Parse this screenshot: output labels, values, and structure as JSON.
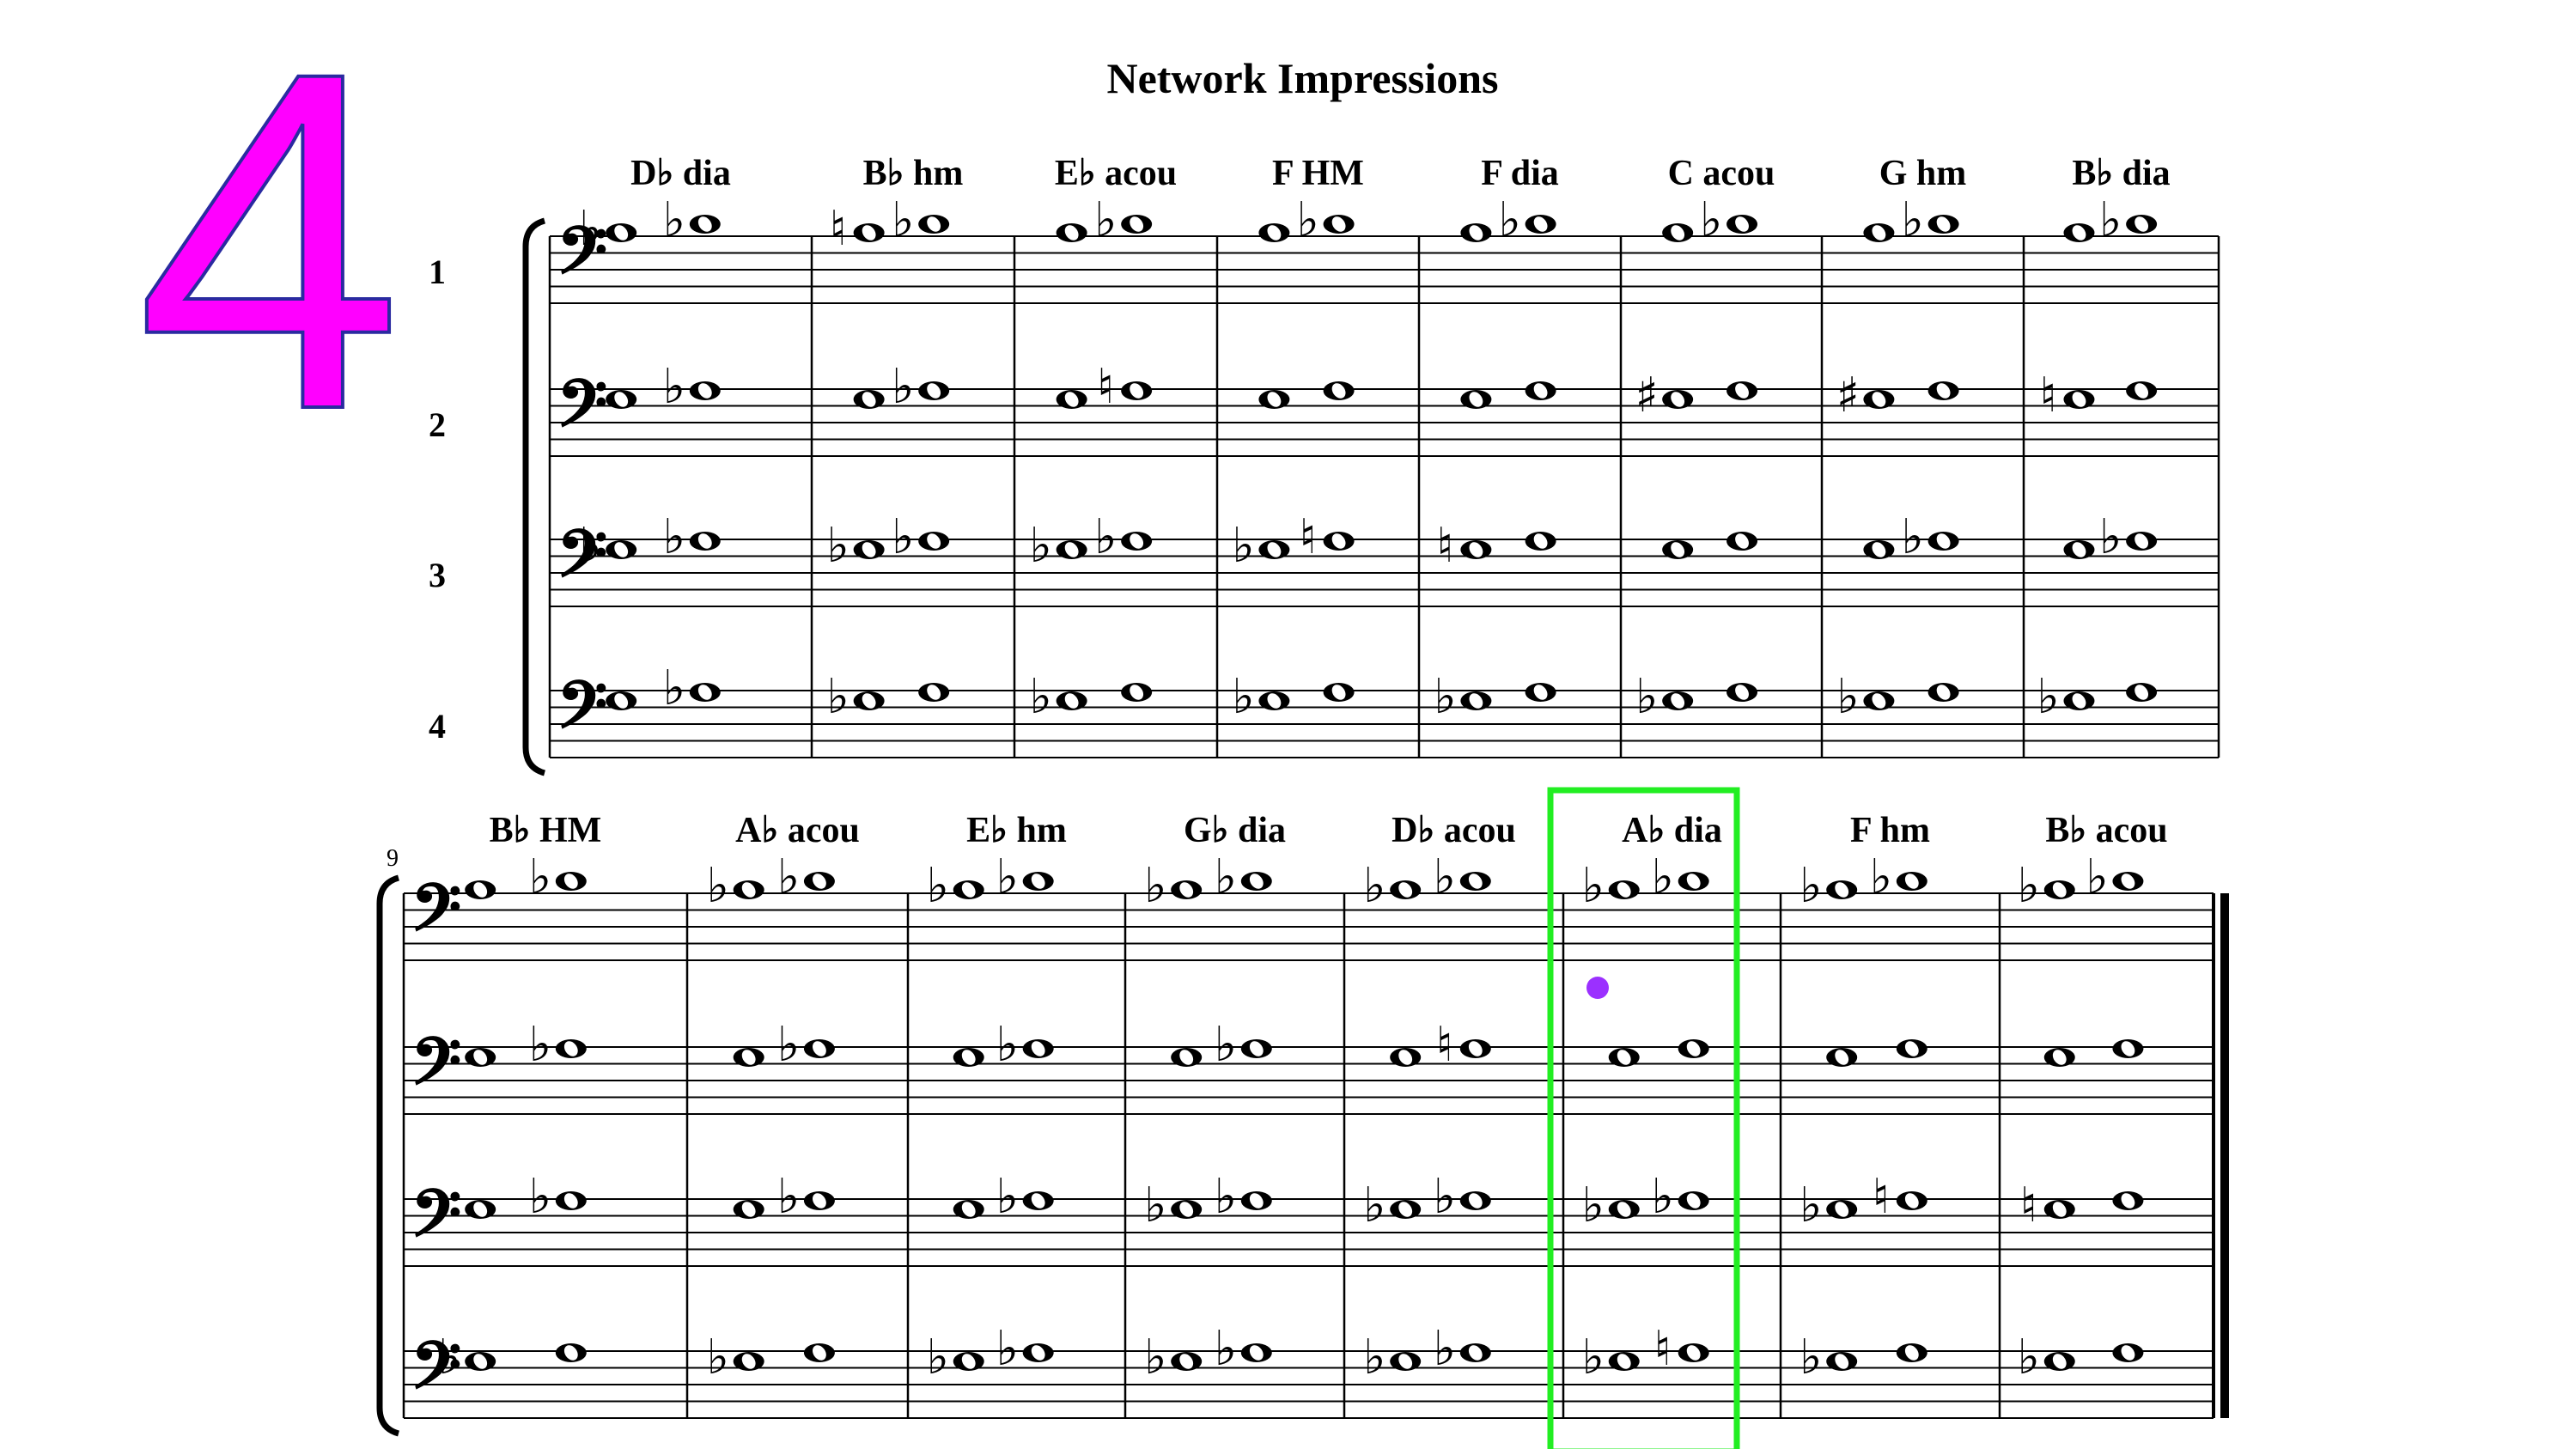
{
  "slide_number": "4",
  "title": "Network Impressions",
  "staff_numbers": [
    "1",
    "2",
    "3",
    "4"
  ],
  "system2_measure_number": "9",
  "colors": {
    "slide_number": "#ff00ff",
    "highlight_box": "#22ee22",
    "marker_dot": "#9b30ff"
  },
  "highlighted_chord": "A♭ dia",
  "systems": [
    {
      "chords": [
        "D♭ dia",
        "B♭ hm",
        "E♭ acou",
        "F HM",
        "F dia",
        "C acou",
        "G hm",
        "B♭ dia"
      ],
      "measures": [
        [
          [
            "flat",
            "flat"
          ],
          [
            "",
            "flat"
          ],
          [
            "flat",
            "flat"
          ],
          [
            "",
            "flat"
          ]
        ],
        [
          [
            "natural",
            "flat"
          ],
          [
            "",
            "flat"
          ],
          [
            "flat",
            "flat"
          ],
          [
            "flat",
            ""
          ]
        ],
        [
          [
            "",
            "flat"
          ],
          [
            "",
            "natural"
          ],
          [
            "flat",
            "flat"
          ],
          [
            "flat",
            ""
          ]
        ],
        [
          [
            "",
            "flat"
          ],
          [
            "",
            ""
          ],
          [
            "flat",
            "natural"
          ],
          [
            "flat",
            ""
          ]
        ],
        [
          [
            "",
            "flat"
          ],
          [
            "",
            ""
          ],
          [
            "natural",
            ""
          ],
          [
            "flat",
            ""
          ]
        ],
        [
          [
            "",
            "flat"
          ],
          [
            "sharp",
            ""
          ],
          [
            "",
            ""
          ],
          [
            "flat",
            ""
          ]
        ],
        [
          [
            "",
            "flat"
          ],
          [
            "sharp",
            ""
          ],
          [
            "",
            "flat"
          ],
          [
            "flat",
            ""
          ]
        ],
        [
          [
            "",
            "flat"
          ],
          [
            "natural",
            ""
          ],
          [
            "",
            "flat"
          ],
          [
            "flat",
            ""
          ]
        ]
      ]
    },
    {
      "chords": [
        "B♭ HM",
        "A♭ acou",
        "E♭ hm",
        "G♭ dia",
        "D♭ acou",
        "A♭ dia",
        "F hm",
        "B♭ acou"
      ],
      "measures": [
        [
          [
            "",
            "flat"
          ],
          [
            "",
            "flat"
          ],
          [
            "",
            "flat"
          ],
          [
            "flat",
            ""
          ]
        ],
        [
          [
            "flat",
            "flat"
          ],
          [
            "",
            "flat"
          ],
          [
            "",
            "flat"
          ],
          [
            "flat",
            ""
          ]
        ],
        [
          [
            "flat",
            "flat"
          ],
          [
            "",
            "flat"
          ],
          [
            "",
            "flat"
          ],
          [
            "flat",
            "flat"
          ]
        ],
        [
          [
            "flat",
            "flat"
          ],
          [
            "",
            "flat"
          ],
          [
            "flat",
            "flat"
          ],
          [
            "flat",
            "flat"
          ]
        ],
        [
          [
            "flat",
            "flat"
          ],
          [
            "",
            "natural"
          ],
          [
            "flat",
            "flat"
          ],
          [
            "flat",
            "flat"
          ]
        ],
        [
          [
            "flat",
            "flat"
          ],
          [
            "",
            ""
          ],
          [
            "flat",
            "flat"
          ],
          [
            "flat",
            "natural"
          ]
        ],
        [
          [
            "flat",
            "flat"
          ],
          [
            "",
            ""
          ],
          [
            "flat",
            "natural"
          ],
          [
            "flat",
            ""
          ]
        ],
        [
          [
            "flat",
            "flat"
          ],
          [
            "",
            ""
          ],
          [
            "natural",
            ""
          ],
          [
            "flat",
            ""
          ]
        ]
      ]
    }
  ]
}
